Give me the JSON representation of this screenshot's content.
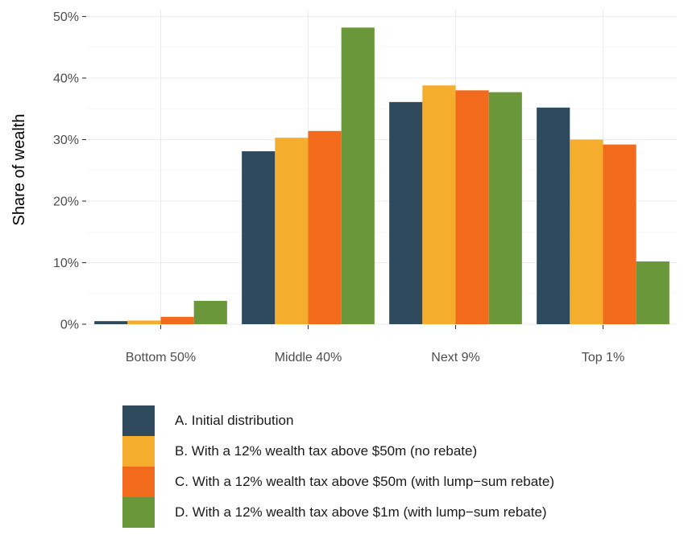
{
  "chart_data": {
    "type": "bar",
    "ylabel": "Share of wealth",
    "xlabel": "",
    "ylim": [
      0,
      50
    ],
    "y_ticks": [
      "0%",
      "10%",
      "20%",
      "30%",
      "40%",
      "50%"
    ],
    "y_tick_values": [
      0,
      10,
      20,
      30,
      40,
      50
    ],
    "categories": [
      "Bottom 50%",
      "Middle 40%",
      "Next 9%",
      "Top 1%"
    ],
    "series": [
      {
        "name": "A. Initial distribution",
        "color": "#2e4a5c",
        "values": [
          0.5,
          28.1,
          36.1,
          35.2
        ]
      },
      {
        "name": "B. With a 12% wealth tax above $50m (no rebate)",
        "color": "#f5ad2e",
        "values": [
          0.6,
          30.3,
          38.8,
          30.0
        ]
      },
      {
        "name": "C. With a 12% wealth tax above $50m (with lump−sum rebate)",
        "color": "#f26a1b",
        "values": [
          1.2,
          31.4,
          38.0,
          29.2
        ]
      },
      {
        "name": "D. With a 12% wealth tax above $1m (with lump−sum rebate)",
        "color": "#6a9739",
        "values": [
          3.8,
          48.2,
          37.7,
          10.2
        ]
      }
    ],
    "grid": true,
    "legend_position": "bottom"
  }
}
